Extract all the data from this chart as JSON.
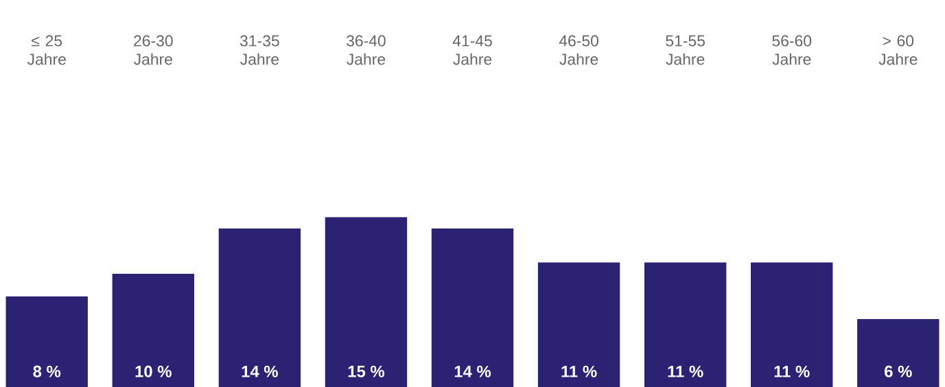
{
  "chart_data": {
    "type": "bar",
    "categories": [
      "≤ 25 Jahre",
      "26-30 Jahre",
      "31-35 Jahre",
      "36-40 Jahre",
      "41-45 Jahre",
      "46-50 Jahre",
      "51-55 Jahre",
      "56-60 Jahre",
      "> 60 Jahre"
    ],
    "values": [
      8,
      10,
      14,
      15,
      14,
      11,
      11,
      11,
      6
    ],
    "value_labels": [
      "8 %",
      "10 %",
      "14 %",
      "15 %",
      "14 %",
      "11 %",
      "11 %",
      "11 %",
      "6 %"
    ],
    "color": "#2c2274"
  }
}
